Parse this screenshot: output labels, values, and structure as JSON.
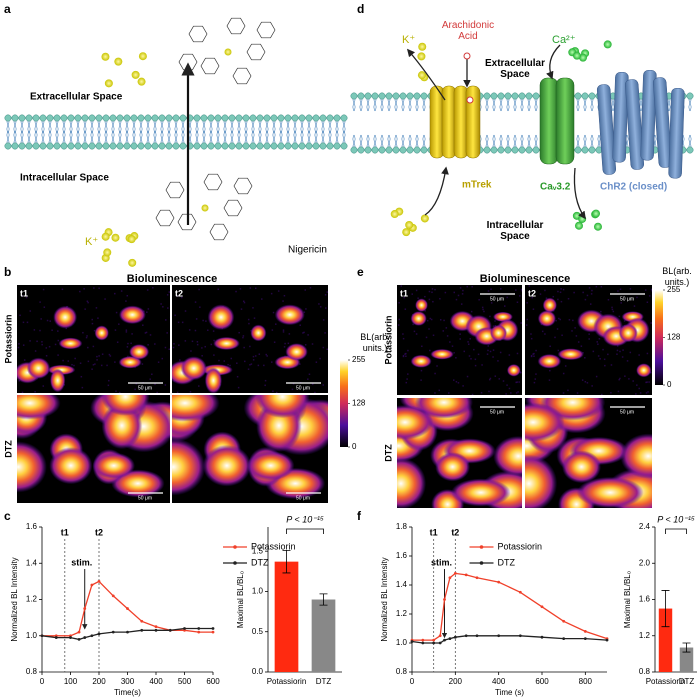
{
  "panel_labels": [
    "a",
    "b",
    "c",
    "d",
    "e",
    "f"
  ],
  "panel_a": {
    "extracellular": "Extracellular Space",
    "intracellular": "Intracellular Space",
    "ion": "K⁺",
    "molecule": "Nigericin"
  },
  "panel_d": {
    "ion_k": "K⁺",
    "lipid": "Arachidonic Acid",
    "extracellular": "Extracellular Space",
    "ion_ca": "Ca²⁺",
    "channel_1": "mTrek",
    "channel_2": "Caᵥ3.2",
    "channel_3": "ChR2 (closed)",
    "intracellular": "Intracellular Space"
  },
  "panel_b": {
    "title": "Bioluminescence",
    "time_labels": [
      "t1",
      "t2"
    ],
    "row_labels": [
      "Potassiorin",
      "DTZ"
    ],
    "scale_bar": "50 μm",
    "colorbar": {
      "label": "BL(arb. units.)",
      "range": [
        0,
        255
      ],
      "ticks": [
        0,
        128,
        255
      ]
    }
  },
  "panel_e": {
    "title": "Bioluminescence",
    "time_labels": [
      "t1",
      "t2"
    ],
    "row_labels": [
      "Potassiorin",
      "DTZ"
    ],
    "scale_bar": "50 μm",
    "colorbar": {
      "label": "BL(arb. units.)",
      "range": [
        0,
        255
      ],
      "ticks": [
        0,
        128,
        255
      ]
    }
  },
  "chart_data": [
    {
      "type": "line",
      "x": [
        0,
        50,
        100,
        130,
        150,
        175,
        200,
        250,
        300,
        350,
        400,
        450,
        500,
        550,
        600
      ],
      "series": [
        {
          "name": "Potassiorin",
          "color": "#f0402a",
          "marker": true,
          "values": [
            1.0,
            1.0,
            1.0,
            1.02,
            1.15,
            1.28,
            1.3,
            1.22,
            1.15,
            1.08,
            1.05,
            1.03,
            1.03,
            1.02,
            1.02
          ]
        },
        {
          "name": "DTZ",
          "color": "#222222",
          "marker": true,
          "values": [
            1.0,
            0.99,
            0.99,
            0.98,
            0.99,
            1.0,
            1.01,
            1.02,
            1.02,
            1.03,
            1.03,
            1.03,
            1.04,
            1.04,
            1.04
          ]
        }
      ],
      "xlabel": "Time(s)",
      "ylabel": "Normalized BL Intensity",
      "xlim": [
        0,
        600
      ],
      "ylim": [
        0.8,
        1.6
      ],
      "xticks": [
        0,
        100,
        200,
        300,
        400,
        500,
        600
      ],
      "yticks": [
        0.8,
        {
          "value": 1.0,
          "label": "1.0"
        },
        1.2,
        1.4,
        1.6
      ],
      "annotations": [
        {
          "text": "t1",
          "x": 80,
          "style": "line"
        },
        {
          "text": "t2",
          "x": 200,
          "style": "line"
        },
        {
          "text": "stim.",
          "x": 150,
          "style": "arrow"
        }
      ],
      "legend": "outside right"
    },
    {
      "type": "bar",
      "title": "P < 10⁻¹⁵",
      "categories": [
        "Potassiorin",
        "DTZ"
      ],
      "values": [
        1.37,
        0.9
      ],
      "errors": [
        0.14,
        0.07
      ],
      "colors": [
        "#ff2a10",
        "#888888"
      ],
      "ylabel": "Maximal BL/BL₀",
      "ylim": [
        0,
        1.8
      ],
      "yticks": [
        {
          "value": 0,
          "label": "0.0"
        },
        0.5,
        {
          "value": 1,
          "label": "1.0"
        },
        1.5
      ]
    },
    {
      "type": "line",
      "x": [
        0,
        50,
        100,
        130,
        150,
        175,
        200,
        250,
        300,
        400,
        500,
        600,
        700,
        800,
        900
      ],
      "series": [
        {
          "name": "Potassiorin",
          "color": "#f0402a",
          "marker": true,
          "values": [
            1.02,
            1.02,
            1.02,
            1.05,
            1.3,
            1.45,
            1.48,
            1.47,
            1.45,
            1.42,
            1.35,
            1.25,
            1.15,
            1.08,
            1.03
          ]
        },
        {
          "name": "DTZ",
          "color": "#222222",
          "marker": true,
          "values": [
            1.01,
            1.0,
            1.0,
            1.0,
            1.02,
            1.03,
            1.04,
            1.05,
            1.05,
            1.05,
            1.05,
            1.04,
            1.03,
            1.03,
            1.02
          ]
        }
      ],
      "xlabel": "Time (s)",
      "ylabel": "Normalized BL Intensity",
      "xlim": [
        0,
        900
      ],
      "ylim": [
        0.8,
        1.8
      ],
      "xticks": [
        0,
        200,
        400,
        600,
        800
      ],
      "yticks": [
        0.8,
        {
          "value": 1.0,
          "label": "1.0"
        },
        1.2,
        1.4,
        1.6,
        1.8
      ],
      "annotations": [
        {
          "text": "t1",
          "x": 100,
          "style": "line"
        },
        {
          "text": "t2",
          "x": 200,
          "style": "line"
        },
        {
          "text": "stim.",
          "x": 150,
          "style": "arrow"
        }
      ],
      "legend": "upper center"
    },
    {
      "type": "bar",
      "title": "P < 10⁻¹⁵",
      "categories": [
        "Potassiorin",
        "DTZ"
      ],
      "values": [
        1.5,
        1.07
      ],
      "errors": [
        0.2,
        0.05
      ],
      "colors": [
        "#ff2a10",
        "#888888"
      ],
      "ylabel": "Maximal BL/BL₀",
      "ylim": [
        0.8,
        2.4
      ],
      "yticks": [
        0.8,
        1.2,
        1.6,
        {
          "value": 2.0,
          "label": "2.0"
        },
        2.4
      ]
    }
  ]
}
